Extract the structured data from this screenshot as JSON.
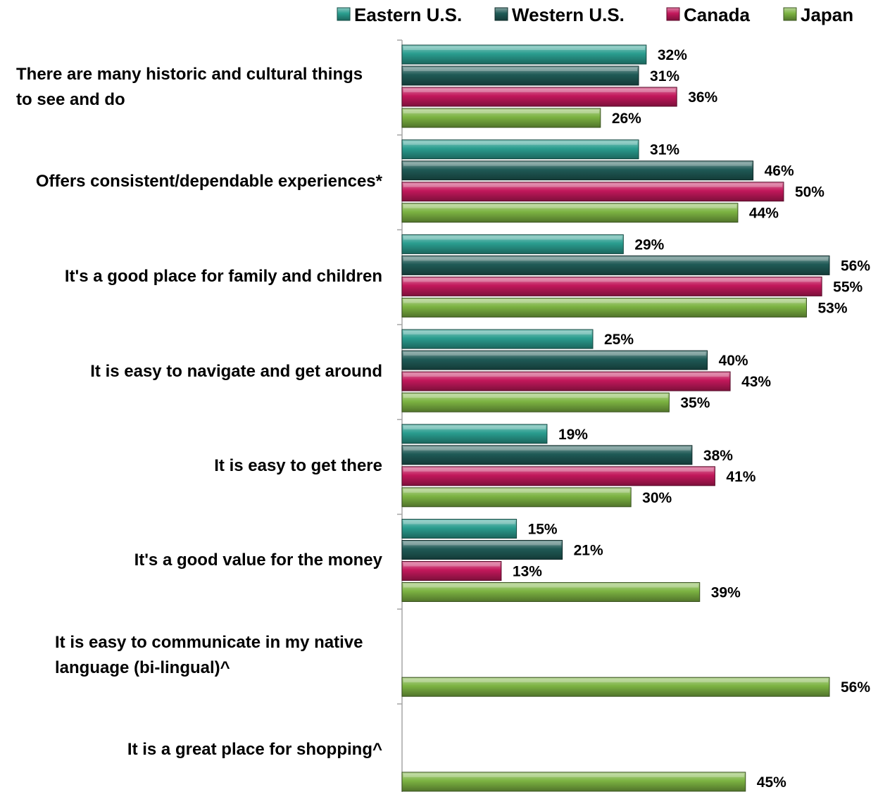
{
  "chart_data": {
    "type": "bar",
    "orientation": "horizontal",
    "title": "",
    "xlabel": "",
    "ylabel": "",
    "xlim": [
      0,
      56
    ],
    "grid": false,
    "legend_position": "top",
    "value_format": "percent",
    "categories": [
      [
        "There are many historic and cultural things",
        "to see and do"
      ],
      [
        "Offers consistent/dependable experiences*"
      ],
      [
        "It's a good place for family and children"
      ],
      [
        "It is easy to navigate and get around"
      ],
      [
        "It is easy to get there"
      ],
      [
        "It's a good value for the money"
      ],
      [
        "It is easy to communicate in my native",
        "language (bi-lingual)^"
      ],
      [
        "It is a great place for shopping^"
      ]
    ],
    "series": [
      {
        "name": "Eastern U.S.",
        "color": "#2a9d8f",
        "values": [
          32,
          31,
          29,
          25,
          19,
          15,
          null,
          null
        ]
      },
      {
        "name": "Western U.S.",
        "color": "#1f5a56",
        "values": [
          31,
          46,
          56,
          40,
          38,
          21,
          null,
          null
        ]
      },
      {
        "name": "Canada",
        "color": "#c2185b",
        "values": [
          36,
          50,
          55,
          43,
          41,
          13,
          null,
          null
        ]
      },
      {
        "name": "Japan",
        "color": "#7cb342",
        "values": [
          26,
          44,
          53,
          35,
          30,
          39,
          56,
          45
        ]
      }
    ]
  }
}
